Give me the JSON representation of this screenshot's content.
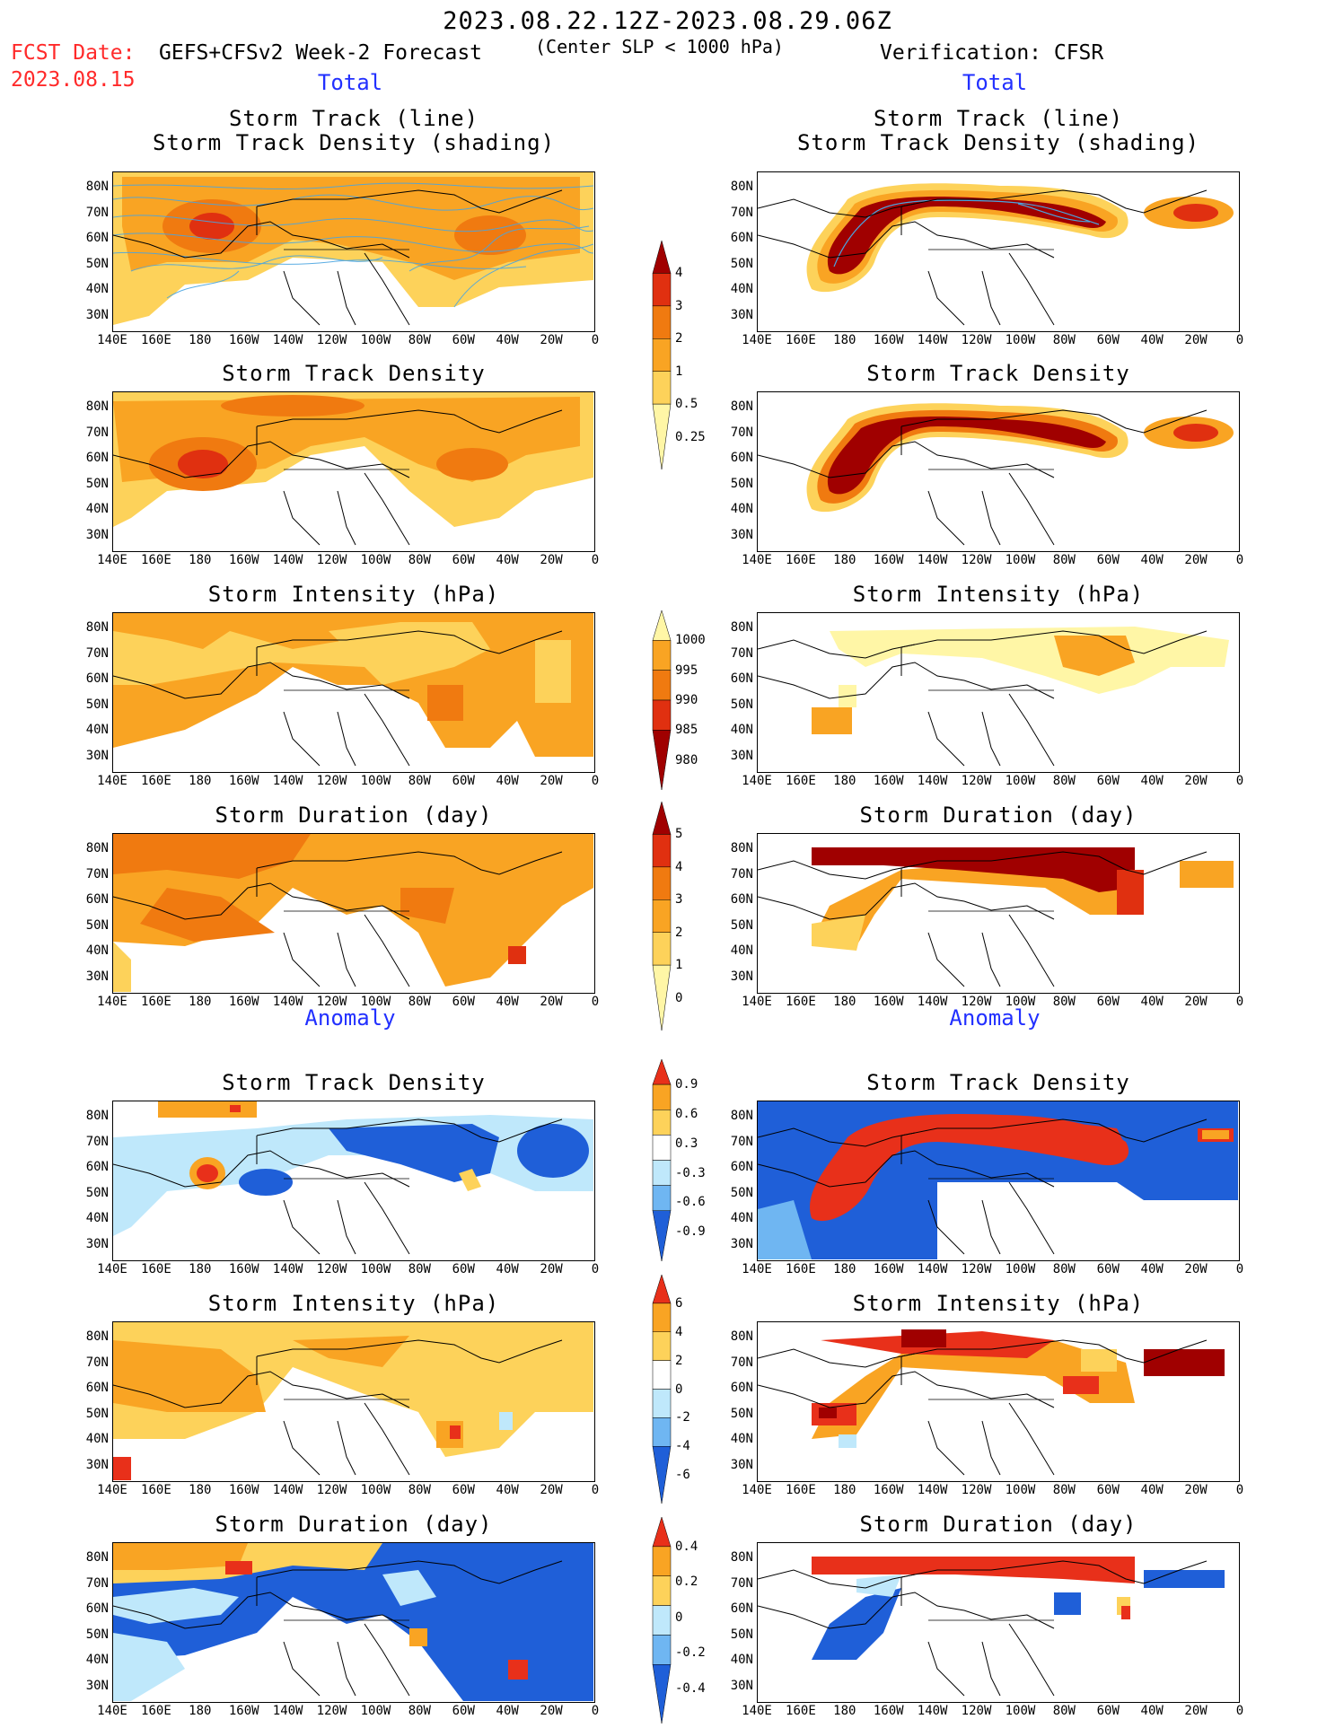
{
  "header": {
    "title": "2023.08.22.12Z-2023.08.29.06Z",
    "fcst_label": "FCST Date:",
    "fcst_date": "2023.08.15",
    "model": "GEFS+CFSv2 Week-2 Forecast",
    "criterion": "(Center SLP < 1000 hPa)",
    "verification": "Verification: CFSR"
  },
  "section_labels": {
    "total_left": "Total",
    "total_right": "Total",
    "anomaly_left": "Anomaly",
    "anomaly_right": "Anomaly"
  },
  "panel_titles": {
    "track_line": "Storm Track (line)",
    "track_density_shading": "Storm Track Density (shading)",
    "track_density": "Storm Track Density",
    "intensity": "Storm Intensity (hPa)",
    "duration": "Storm Duration (day)"
  },
  "axes": {
    "lat_labels": [
      "80N",
      "70N",
      "60N",
      "50N",
      "40N",
      "30N"
    ],
    "lon_labels": [
      "140E",
      "160E",
      "180",
      "160W",
      "140W",
      "120W",
      "100W",
      "80W",
      "60W",
      "40W",
      "20W",
      "0"
    ]
  },
  "colorbars": {
    "density_total": {
      "labels": [
        "4",
        "3",
        "2",
        "1",
        "0.5",
        "0.25"
      ],
      "colors": [
        "#a00000",
        "#e03010",
        "#f07a10",
        "#f9a423",
        "#fdd25a",
        "#fff6a6"
      ]
    },
    "intensity_total": {
      "labels": [
        "1000",
        "995",
        "990",
        "985",
        "980"
      ],
      "colors": [
        "#fff6a6",
        "#f9a423",
        "#f07a10",
        "#e03010",
        "#a00000"
      ]
    },
    "duration_total": {
      "labels": [
        "5",
        "4",
        "3",
        "2",
        "1",
        "0"
      ],
      "colors": [
        "#a00000",
        "#e03010",
        "#f07a10",
        "#f9a423",
        "#fdd25a",
        "#fff6a6"
      ]
    },
    "density_anom": {
      "labels": [
        "0.9",
        "0.6",
        "0.3",
        "-0.3",
        "-0.6",
        "-0.9"
      ],
      "colors": [
        "#e8301a",
        "#f9a423",
        "#fdd25a",
        "#ffffff",
        "#bfe8fb",
        "#6fb6f2",
        "#1f5fd8"
      ]
    },
    "intensity_anom": {
      "labels": [
        "6",
        "4",
        "2",
        "0",
        "-2",
        "-4",
        "-6"
      ],
      "colors": [
        "#e8301a",
        "#f9a423",
        "#fdd25a",
        "#ffffff",
        "#bfe8fb",
        "#6fb6f2",
        "#1f5fd8"
      ]
    },
    "duration_anom": {
      "labels": [
        "0.4",
        "0.2",
        "0",
        "-0.2",
        "-0.4"
      ],
      "colors": [
        "#e8301a",
        "#f9a423",
        "#fdd25a",
        "#bfe8fb",
        "#6fb6f2",
        "#1f5fd8"
      ]
    }
  }
}
